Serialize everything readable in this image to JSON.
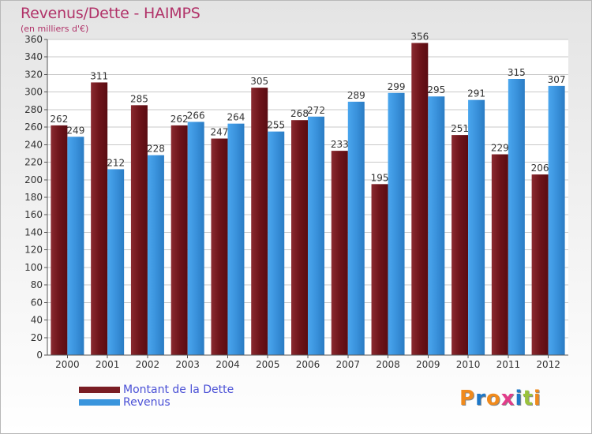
{
  "header": {
    "title": "Revenus/Dette - HAIMPS",
    "subtitle": "(en milliers d'€)"
  },
  "legend": {
    "debt_label": "Montant de la Dette",
    "revenue_label": "Revenus"
  },
  "logo": {
    "text": "Proxiti",
    "letter_colors": [
      "#f08a1c",
      "#1e78c8",
      "#f08a1c",
      "#e23c8a",
      "#1e78c8",
      "#9ac23c",
      "#f08a1c"
    ]
  },
  "colors": {
    "debt": "#7a1e24",
    "revenue": "#3a95dd",
    "title": "#b13369",
    "legend_text": "#4a50d6"
  },
  "chart_data": {
    "type": "bar",
    "title": "Revenus/Dette - HAIMPS",
    "subtitle": "(en milliers d'€)",
    "categories": [
      "2000",
      "2001",
      "2002",
      "2003",
      "2004",
      "2005",
      "2006",
      "2007",
      "2008",
      "2009",
      "2010",
      "2011",
      "2012"
    ],
    "series": [
      {
        "name": "Montant de la Dette",
        "values": [
          262,
          311,
          285,
          262,
          247,
          305,
          268,
          233,
          195,
          356,
          251,
          229,
          206
        ]
      },
      {
        "name": "Revenus",
        "values": [
          249,
          212,
          228,
          266,
          264,
          255,
          272,
          289,
          299,
          295,
          291,
          315,
          307
        ]
      }
    ],
    "ylim": [
      0,
      360
    ],
    "yticks": [
      0,
      20,
      40,
      60,
      80,
      100,
      120,
      140,
      160,
      180,
      200,
      220,
      240,
      260,
      280,
      300,
      320,
      340,
      360
    ],
    "grid": true,
    "legend_position": "bottom-left"
  }
}
